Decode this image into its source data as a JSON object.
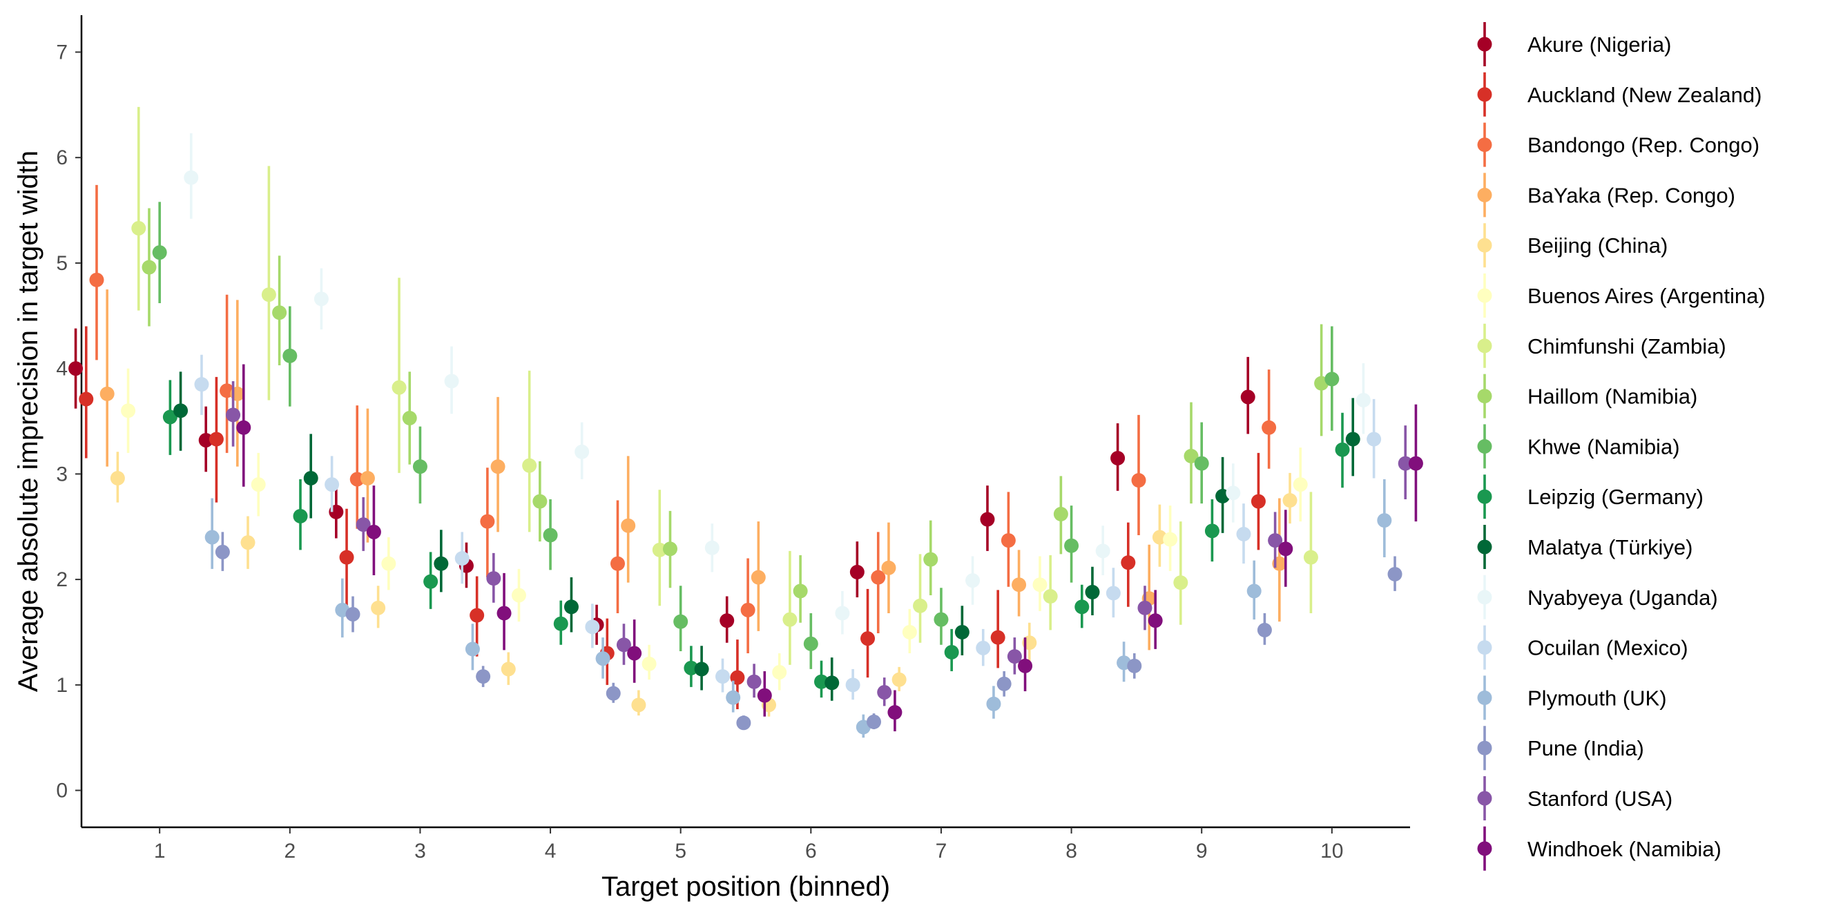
{
  "chart_data": {
    "type": "scatter",
    "subtype": "dot-with-error-bars (dodged)",
    "title": "",
    "xlabel": "Target position (binned)",
    "ylabel": "Average absolute imprecision in target width",
    "x_categories": [
      "1",
      "2",
      "3",
      "4",
      "5",
      "6",
      "7",
      "8",
      "9",
      "10"
    ],
    "ylim": [
      -0.35,
      7.35
    ],
    "y_ticks": [
      0,
      1,
      2,
      3,
      4,
      5,
      6,
      7
    ],
    "grid": false,
    "legend_position": "right",
    "series": [
      {
        "name": "Akure (Nigeria)",
        "color": "#A50026",
        "values": [
          4.0,
          3.32,
          2.64,
          2.13,
          1.57,
          1.61,
          2.07,
          2.57,
          3.15,
          3.73
        ],
        "lower": [
          3.62,
          3.02,
          2.39,
          1.92,
          1.38,
          1.4,
          1.83,
          2.27,
          2.84,
          3.38
        ],
        "upper": [
          4.38,
          3.64,
          2.91,
          2.35,
          1.76,
          1.84,
          2.36,
          2.89,
          3.48,
          4.11
        ]
      },
      {
        "name": "Auckland (New Zealand)",
        "color": "#D73027",
        "values": [
          3.71,
          3.33,
          2.21,
          1.66,
          1.3,
          1.07,
          1.44,
          1.45,
          2.16,
          2.74
        ],
        "lower": [
          3.15,
          2.73,
          1.74,
          1.27,
          1.0,
          0.77,
          1.07,
          1.16,
          1.74,
          2.28
        ],
        "upper": [
          4.4,
          3.92,
          2.67,
          2.03,
          1.63,
          1.43,
          1.91,
          1.9,
          2.54,
          3.2
        ]
      },
      {
        "name": "Bandongo (Rep. Congo)",
        "color": "#F46D43",
        "values": [
          4.84,
          3.79,
          2.95,
          2.55,
          2.15,
          1.71,
          2.02,
          2.37,
          2.94,
          3.44
        ],
        "lower": [
          4.08,
          3.2,
          2.48,
          2.02,
          1.68,
          1.3,
          1.49,
          1.93,
          2.42,
          3.05
        ],
        "upper": [
          5.74,
          4.7,
          3.65,
          3.06,
          2.75,
          2.2,
          2.45,
          2.83,
          3.56,
          3.99
        ]
      },
      {
        "name": "BaYaka (Rep. Congo)",
        "color": "#FDAE61",
        "values": [
          3.76,
          3.76,
          2.96,
          3.07,
          2.51,
          2.02,
          2.11,
          1.95,
          1.82,
          2.15
        ],
        "lower": [
          3.07,
          3.07,
          2.35,
          2.45,
          1.97,
          1.51,
          1.68,
          1.65,
          1.33,
          1.6
        ],
        "upper": [
          4.75,
          4.65,
          3.62,
          3.73,
          3.17,
          2.55,
          2.54,
          2.28,
          2.33,
          2.77
        ]
      },
      {
        "name": "Beijing (China)",
        "color": "#FEE090",
        "values": [
          2.96,
          2.35,
          1.73,
          1.15,
          0.81,
          0.81,
          1.05,
          1.4,
          2.4,
          2.75
        ],
        "lower": [
          2.73,
          2.1,
          1.54,
          1.0,
          0.71,
          0.7,
          0.94,
          1.22,
          2.12,
          2.53
        ],
        "upper": [
          3.21,
          2.6,
          1.94,
          1.31,
          0.95,
          0.93,
          1.17,
          1.59,
          2.71,
          3.01
        ]
      },
      {
        "name": "Buenos Aires (Argentina)",
        "color": "#FFFFBF",
        "values": [
          3.6,
          2.9,
          2.15,
          1.85,
          1.2,
          1.12,
          1.5,
          1.95,
          2.38,
          2.9
        ],
        "lower": [
          3.2,
          2.6,
          1.9,
          1.6,
          1.05,
          0.95,
          1.3,
          1.7,
          2.08,
          2.55
        ],
        "upper": [
          4.0,
          3.2,
          2.4,
          2.1,
          1.38,
          1.3,
          1.72,
          2.22,
          2.7,
          3.25
        ]
      },
      {
        "name": "Chimfunshi (Zambia)",
        "color": "#D9EF8B",
        "values": [
          5.33,
          4.7,
          3.82,
          3.08,
          2.28,
          1.62,
          1.75,
          1.84,
          1.97,
          2.21
        ],
        "lower": [
          4.55,
          3.7,
          3.01,
          2.45,
          1.75,
          1.19,
          1.4,
          1.52,
          1.57,
          1.68
        ],
        "upper": [
          6.48,
          5.92,
          4.86,
          3.98,
          2.85,
          2.27,
          2.24,
          2.23,
          2.55,
          2.83
        ]
      },
      {
        "name": "Haillom (Namibia)",
        "color": "#A6D96A",
        "values": [
          4.96,
          4.53,
          3.53,
          2.74,
          2.29,
          1.89,
          2.19,
          2.62,
          3.17,
          3.86
        ],
        "lower": [
          4.4,
          4.03,
          3.09,
          2.36,
          1.92,
          1.59,
          1.85,
          2.24,
          2.72,
          3.36
        ],
        "upper": [
          5.52,
          5.07,
          3.97,
          3.12,
          2.65,
          2.23,
          2.56,
          2.98,
          3.68,
          4.42
        ]
      },
      {
        "name": "Khwe (Namibia)",
        "color": "#66BD63",
        "values": [
          5.1,
          4.12,
          3.07,
          2.42,
          1.6,
          1.39,
          1.62,
          2.32,
          3.1,
          3.9
        ],
        "lower": [
          4.62,
          3.64,
          2.72,
          2.09,
          1.32,
          1.15,
          1.38,
          1.97,
          2.72,
          3.41
        ],
        "upper": [
          5.58,
          4.59,
          3.45,
          2.76,
          1.94,
          1.68,
          1.92,
          2.7,
          3.49,
          4.4
        ]
      },
      {
        "name": "Leipzig (Germany)",
        "color": "#1A9850",
        "values": [
          3.54,
          2.6,
          1.98,
          1.58,
          1.16,
          1.03,
          1.31,
          1.74,
          2.46,
          3.23
        ],
        "lower": [
          3.18,
          2.28,
          1.72,
          1.38,
          0.98,
          0.88,
          1.13,
          1.54,
          2.17,
          2.87
        ],
        "upper": [
          3.89,
          2.95,
          2.26,
          1.8,
          1.37,
          1.23,
          1.53,
          1.95,
          2.76,
          3.58
        ]
      },
      {
        "name": "Malatya (Türkiye)",
        "color": "#006837",
        "values": [
          3.6,
          2.96,
          2.15,
          1.74,
          1.15,
          1.02,
          1.5,
          1.88,
          2.79,
          3.33
        ],
        "lower": [
          3.22,
          2.58,
          1.88,
          1.5,
          0.95,
          0.85,
          1.28,
          1.66,
          2.44,
          2.98
        ],
        "upper": [
          3.97,
          3.38,
          2.47,
          2.02,
          1.37,
          1.26,
          1.75,
          2.12,
          3.16,
          3.72
        ]
      },
      {
        "name": "Nyabyeya (Uganda)",
        "color": "#E9F6F8",
        "values": [
          5.81,
          4.66,
          3.88,
          3.21,
          2.3,
          1.68,
          1.99,
          2.27,
          2.82,
          3.7
        ],
        "lower": [
          5.42,
          4.37,
          3.57,
          2.95,
          2.07,
          1.48,
          1.76,
          2.04,
          2.54,
          3.38
        ],
        "upper": [
          6.23,
          4.95,
          4.21,
          3.49,
          2.53,
          1.89,
          2.22,
          2.51,
          3.1,
          4.05
        ]
      },
      {
        "name": "Ocuilan (Mexico)",
        "color": "#C6DBEF",
        "values": [
          3.85,
          2.9,
          2.2,
          1.55,
          1.08,
          1.0,
          1.35,
          1.87,
          2.43,
          3.33
        ],
        "lower": [
          3.56,
          2.64,
          1.96,
          1.35,
          0.93,
          0.86,
          1.18,
          1.64,
          2.15,
          2.96
        ],
        "upper": [
          4.13,
          3.17,
          2.45,
          1.77,
          1.25,
          1.15,
          1.53,
          2.11,
          2.72,
          3.71
        ]
      },
      {
        "name": "Plymouth (UK)",
        "color": "#9EBCDA",
        "values": [
          2.4,
          1.71,
          1.34,
          1.25,
          0.88,
          0.6,
          0.82,
          1.21,
          1.89,
          2.56
        ],
        "lower": [
          2.1,
          1.45,
          1.14,
          1.06,
          0.74,
          0.5,
          0.68,
          1.03,
          1.62,
          2.21
        ],
        "upper": [
          2.77,
          2.01,
          1.58,
          1.45,
          1.04,
          0.72,
          0.99,
          1.41,
          2.18,
          2.95
        ]
      },
      {
        "name": "Pune (India)",
        "color": "#8C96C6",
        "values": [
          2.26,
          1.67,
          1.08,
          0.92,
          0.64,
          0.65,
          1.01,
          1.18,
          1.52,
          2.05
        ],
        "lower": [
          2.08,
          1.5,
          0.98,
          0.83,
          0.58,
          0.58,
          0.89,
          1.06,
          1.38,
          1.89
        ],
        "upper": [
          2.45,
          1.84,
          1.18,
          1.02,
          0.71,
          0.73,
          1.13,
          1.3,
          1.68,
          2.22
        ]
      },
      {
        "name": "Stanford (USA)",
        "color": "#8856A7",
        "values": [
          3.56,
          2.52,
          2.01,
          1.38,
          1.03,
          0.93,
          1.27,
          1.73,
          2.37,
          3.1
        ],
        "lower": [
          3.26,
          2.27,
          1.78,
          1.19,
          0.88,
          0.8,
          1.1,
          1.52,
          2.11,
          2.76
        ],
        "upper": [
          3.88,
          2.78,
          2.25,
          1.58,
          1.2,
          1.07,
          1.45,
          1.94,
          2.64,
          3.46
        ]
      },
      {
        "name": "Windhoek (Namibia)",
        "color": "#810F7C",
        "values": [
          3.44,
          2.45,
          1.68,
          1.3,
          0.9,
          0.74,
          1.18,
          1.61,
          2.29,
          3.1
        ],
        "lower": [
          2.88,
          2.04,
          1.33,
          1.02,
          0.7,
          0.56,
          0.94,
          1.34,
          1.93,
          2.55
        ],
        "upper": [
          4.04,
          2.89,
          2.06,
          1.62,
          1.13,
          0.95,
          1.45,
          1.9,
          2.66,
          3.66
        ]
      }
    ]
  }
}
